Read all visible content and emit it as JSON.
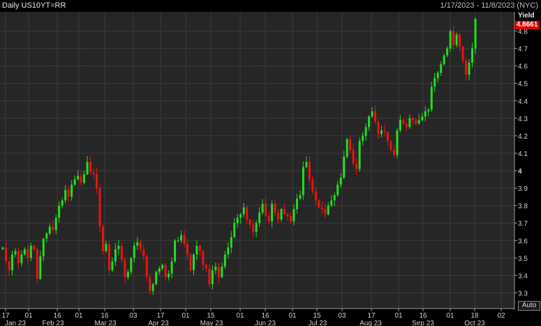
{
  "header": {
    "title": "Daily US10YT=RR",
    "date_range": "1/17/2023 - 11/8/2023 (NYC)"
  },
  "auto_button": "Auto",
  "chart_data": {
    "type": "candlestick",
    "ylabel": "Yield",
    "ylim": [
      3.21,
      4.91
    ],
    "yticks": [
      "3.3",
      "3.4",
      "3.5",
      "3.6",
      "3.7",
      "3.8",
      "3.9",
      "4",
      "4.1",
      "4.2",
      "4.3",
      "4.4",
      "4.5",
      "4.6",
      "4.7",
      "4.8"
    ],
    "last_value": "4.8661",
    "day_ticks": [
      "17",
      "01",
      "16",
      "01",
      "16",
      "03",
      "17",
      "01",
      "15",
      "01",
      "16",
      "01",
      "15",
      "03",
      "17",
      "01",
      "16",
      "01",
      "18",
      "02",
      "16",
      "01"
    ],
    "month_labels": [
      "Jan 23",
      "Feb 23",
      "Mar 23",
      "Apr 23",
      "May 23",
      "Jun 23",
      "Jul 23",
      "Aug 23",
      "Sep 23",
      "Oct 23"
    ],
    "colors": {
      "up": "#22dd22",
      "down": "#ee1111",
      "background": "#262626",
      "grid": "#3a3a3a",
      "last_value_badge": "#d60000"
    },
    "closes": [
      3.56,
      3.48,
      3.43,
      3.52,
      3.54,
      3.47,
      3.52,
      3.55,
      3.5,
      3.57,
      3.55,
      3.38,
      3.51,
      3.61,
      3.64,
      3.68,
      3.66,
      3.73,
      3.8,
      3.83,
      3.89,
      3.85,
      3.92,
      3.95,
      3.97,
      3.93,
      3.98,
      4.05,
      3.99,
      3.98,
      3.9,
      3.68,
      3.54,
      3.58,
      3.43,
      3.48,
      3.55,
      3.57,
      3.49,
      3.39,
      3.42,
      3.5,
      3.57,
      3.59,
      3.55,
      3.51,
      3.39,
      3.31,
      3.35,
      3.42,
      3.44,
      3.46,
      3.39,
      3.41,
      3.48,
      3.6,
      3.6,
      3.63,
      3.58,
      3.52,
      3.43,
      3.52,
      3.57,
      3.54,
      3.46,
      3.44,
      3.35,
      3.43,
      3.45,
      3.39,
      3.45,
      3.52,
      3.56,
      3.62,
      3.7,
      3.73,
      3.75,
      3.79,
      3.72,
      3.69,
      3.65,
      3.7,
      3.76,
      3.81,
      3.74,
      3.71,
      3.81,
      3.76,
      3.72,
      3.78,
      3.75,
      3.74,
      3.71,
      3.78,
      3.84,
      3.86,
      4.02,
      4.05,
      3.95,
      3.88,
      3.83,
      3.79,
      3.78,
      3.75,
      3.8,
      3.83,
      3.86,
      3.92,
      3.96,
      4.08,
      4.18,
      4.12,
      4.04,
      4.01,
      4.17,
      4.2,
      4.25,
      4.31,
      4.34,
      4.28,
      4.21,
      4.23,
      4.22,
      4.17,
      4.12,
      4.09,
      4.23,
      4.29,
      4.27,
      4.25,
      4.3,
      4.29,
      4.27,
      4.29,
      4.31,
      4.34,
      4.35,
      4.48,
      4.53,
      4.56,
      4.61,
      4.66,
      4.7,
      4.8,
      4.72,
      4.78,
      4.71,
      4.63,
      4.55,
      4.62,
      4.7,
      4.87
    ]
  }
}
